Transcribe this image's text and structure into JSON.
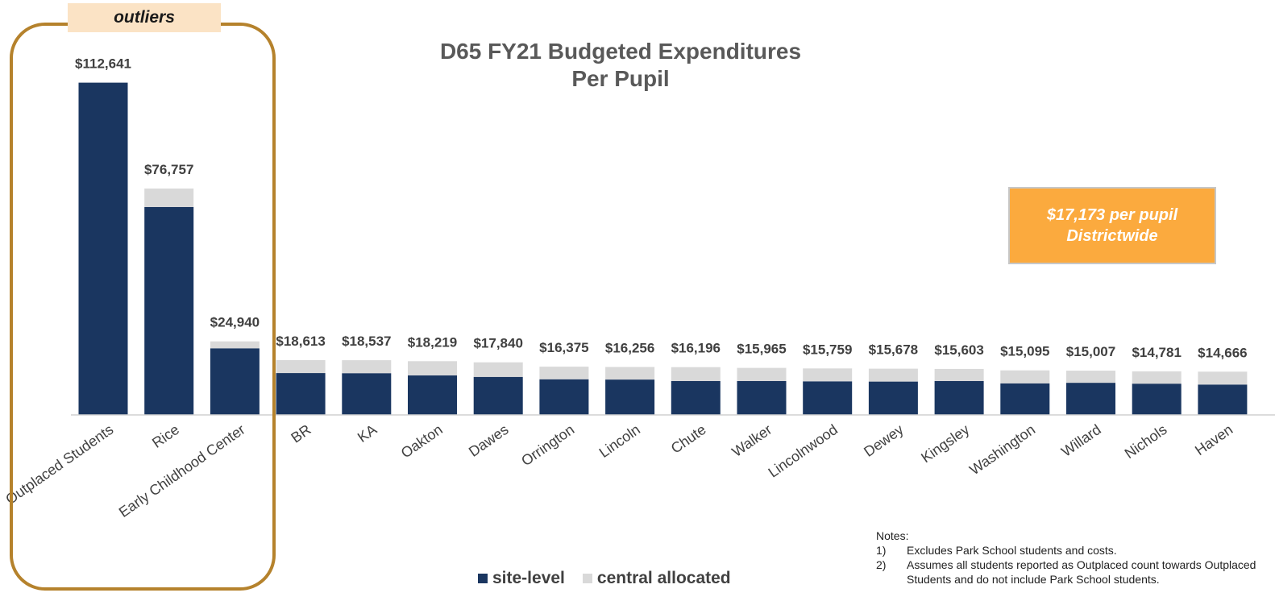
{
  "chart_data": {
    "type": "bar",
    "stacked": true,
    "title": "D65 FY21 Budgeted Expenditures Per Pupil",
    "title_lines": [
      "D65 FY21 Budgeted Expenditures",
      "Per Pupil"
    ],
    "categories": [
      "Outplaced Students",
      "Rice",
      "Early Childhood Center",
      "BR",
      "KA",
      "Oakton",
      "Dawes",
      "Orrington",
      "Lincoln",
      "Chute",
      "Walker",
      "Lincolnwood",
      "Dewey",
      "Kingsley",
      "Washington",
      "Willard",
      "Nichols",
      "Haven"
    ],
    "totals": [
      112641,
      76757,
      24940,
      18613,
      18537,
      18219,
      17840,
      16375,
      16256,
      16196,
      15965,
      15759,
      15678,
      15603,
      15095,
      15007,
      14781,
      14666
    ],
    "total_labels": [
      "$112,641",
      "$76,757",
      "$24,940",
      "$18,613",
      "$18,537",
      "$18,219",
      "$17,840",
      "$16,375",
      "$16,256",
      "$16,196",
      "$15,965",
      "$15,759",
      "$15,678",
      "$15,603",
      "$15,095",
      "$15,007",
      "$14,781",
      "$14,666"
    ],
    "series": [
      {
        "name": "site-level",
        "color": "#1a3660",
        "values": [
          112641,
          70500,
          22600,
          14200,
          14150,
          13400,
          12900,
          12100,
          12000,
          11500,
          11500,
          11400,
          11300,
          11500,
          10700,
          10900,
          10600,
          10300
        ]
      },
      {
        "name": "central allocated",
        "color": "#d9d9d9",
        "values": [
          0,
          6257,
          2340,
          4413,
          4387,
          4819,
          4940,
          4275,
          4256,
          4696,
          4465,
          4359,
          4378,
          4103,
          4395,
          4107,
          4181,
          4366
        ]
      }
    ],
    "ylim": [
      0,
      115000
    ],
    "grid": false,
    "legend_position": "bottom"
  },
  "outlier_label": "outliers",
  "callout": {
    "line1": "$17,173 per pupil",
    "line2": "Districtwide"
  },
  "notes": {
    "heading": "Notes:",
    "items": [
      {
        "num": "1)",
        "text": "Excludes Park School students and costs."
      },
      {
        "num": "2)",
        "text": "Assumes all students reported as Outplaced count towards Outplaced"
      },
      {
        "num": "",
        "text": "Students and do not include Park School students."
      }
    ]
  }
}
